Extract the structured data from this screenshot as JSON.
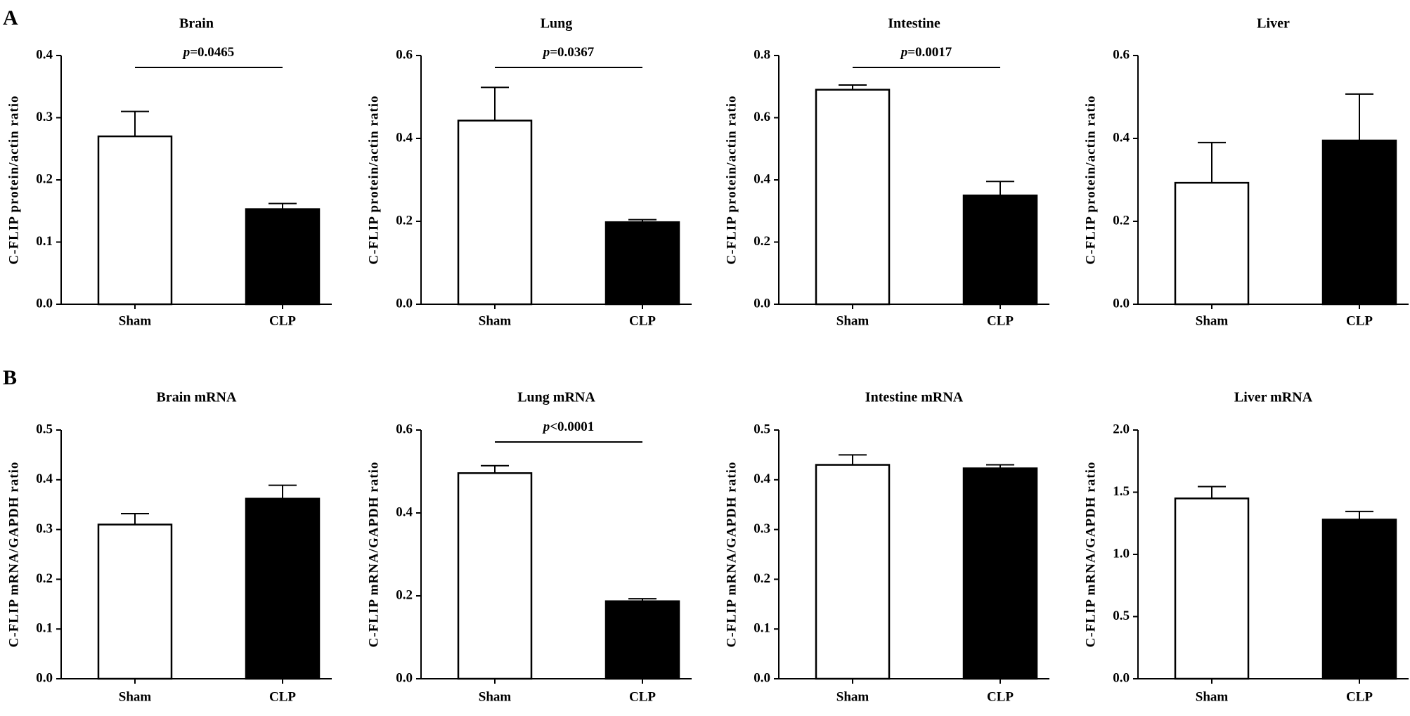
{
  "chart_data": [
    {
      "type": "bar",
      "panel": "A",
      "title": "Brain",
      "ylabel": "C-FLIP protein/actin ratio",
      "categories": [
        "Sham",
        "CLP"
      ],
      "values": [
        0.27,
        0.153
      ],
      "errors": [
        0.04,
        0.009
      ],
      "colors": [
        "#ffffff",
        "#000000"
      ],
      "ylim": [
        0,
        0.4
      ],
      "yticks": [
        {
          "value": 0,
          "label": "0.0"
        },
        0.1,
        0.2,
        0.3,
        0.4
      ],
      "annotation": "p=0.0465"
    },
    {
      "type": "bar",
      "title": "Lung",
      "ylabel": "C-FLIP protein/actin ratio",
      "categories": [
        "Sham",
        "CLP"
      ],
      "values": [
        0.443,
        0.198
      ],
      "errors": [
        0.08,
        0.006
      ],
      "colors": [
        "#ffffff",
        "#000000"
      ],
      "ylim": [
        0,
        0.6
      ],
      "yticks": [
        {
          "value": 0,
          "label": "0.0"
        },
        0.2,
        0.4,
        0.6
      ],
      "annotation": "p=0.0367"
    },
    {
      "type": "bar",
      "title": "Intestine",
      "ylabel": "C-FLIP protein/actin ratio",
      "categories": [
        "Sham",
        "CLP"
      ],
      "values": [
        0.69,
        0.35
      ],
      "errors": [
        0.015,
        0.045
      ],
      "colors": [
        "#ffffff",
        "#000000"
      ],
      "ylim": [
        0,
        0.8
      ],
      "yticks": [
        {
          "value": 0,
          "label": "0.0"
        },
        0.2,
        0.4,
        0.6,
        0.8
      ],
      "annotation": "p=0.0017"
    },
    {
      "type": "bar",
      "title": "Liver",
      "ylabel": "C-FLIP protein/actin ratio",
      "categories": [
        "Sham",
        "CLP"
      ],
      "values": [
        0.293,
        0.395
      ],
      "errors": [
        0.097,
        0.112
      ],
      "colors": [
        "#ffffff",
        "#000000"
      ],
      "ylim": [
        0,
        0.6
      ],
      "yticks": [
        {
          "value": 0,
          "label": "0.0"
        },
        0.2,
        0.4,
        0.6
      ]
    },
    {
      "type": "bar",
      "panel": "B",
      "title": "Brain mRNA",
      "ylabel": "C-FLIP mRNA/GAPDH ratio",
      "categories": [
        "Sham",
        "CLP"
      ],
      "values": [
        0.31,
        0.362
      ],
      "errors": [
        0.022,
        0.027
      ],
      "colors": [
        "#ffffff",
        "#000000"
      ],
      "ylim": [
        0,
        0.5
      ],
      "yticks": [
        {
          "value": 0,
          "label": "0.0"
        },
        0.1,
        0.2,
        0.3,
        0.4,
        0.5
      ]
    },
    {
      "type": "bar",
      "title": "Lung mRNA",
      "ylabel": "C-FLIP mRNA/GAPDH ratio",
      "categories": [
        "Sham",
        "CLP"
      ],
      "values": [
        0.496,
        0.187
      ],
      "errors": [
        0.018,
        0.006
      ],
      "colors": [
        "#ffffff",
        "#000000"
      ],
      "ylim": [
        0,
        0.6
      ],
      "yticks": [
        {
          "value": 0,
          "label": "0.0"
        },
        0.2,
        0.4,
        0.6
      ],
      "annotation": "p<0.0001"
    },
    {
      "type": "bar",
      "title": "Intestine mRNA",
      "ylabel": "C-FLIP mRNA/GAPDH ratio",
      "categories": [
        "Sham",
        "CLP"
      ],
      "values": [
        0.43,
        0.423
      ],
      "errors": [
        0.02,
        0.007
      ],
      "colors": [
        "#ffffff",
        "#000000"
      ],
      "ylim": [
        0,
        0.5
      ],
      "yticks": [
        {
          "value": 0,
          "label": "0.0"
        },
        0.1,
        0.2,
        0.3,
        0.4,
        0.5
      ]
    },
    {
      "type": "bar",
      "title": "Liver mRNA",
      "ylabel": "C-FLIP mRNA/GAPDH ratio",
      "categories": [
        "Sham",
        "CLP"
      ],
      "values": [
        1.45,
        1.28
      ],
      "errors": [
        0.095,
        0.065
      ],
      "colors": [
        "#ffffff",
        "#000000"
      ],
      "ylim": [
        0,
        2
      ],
      "yticks": [
        {
          "value": 0,
          "label": "0.0"
        },
        0.5,
        {
          "value": 1,
          "label": "1.0"
        },
        1.5,
        {
          "value": 2,
          "label": "2.0"
        }
      ]
    }
  ]
}
